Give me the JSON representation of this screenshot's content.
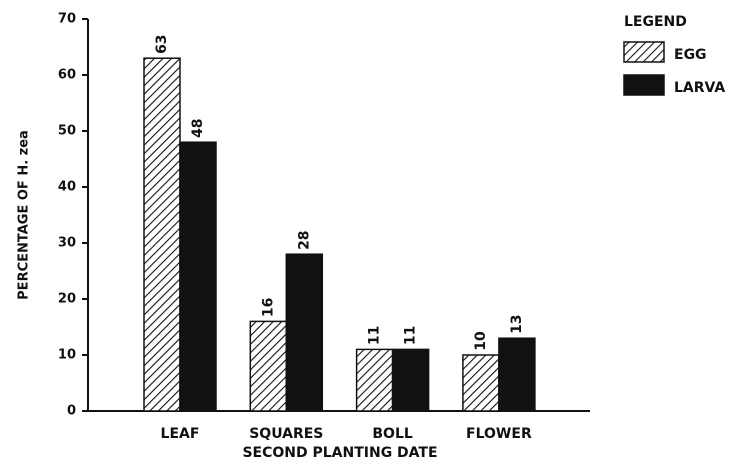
{
  "chart_data": {
    "type": "bar",
    "xlabel": "SECOND PLANTING DATE",
    "ylabel": "PERCENTAGE OF H. zea",
    "categories": [
      "LEAF",
      "SQUARES",
      "BOLL",
      "FLOWER"
    ],
    "series": [
      {
        "name": "EGG",
        "color": "#111111",
        "fill": "hatch",
        "values": [
          63,
          16,
          11,
          10
        ]
      },
      {
        "name": "LARVA",
        "color": "#111111",
        "fill": "solid",
        "values": [
          48,
          28,
          11,
          13
        ]
      }
    ],
    "ylim": [
      0,
      70
    ],
    "yticks": [
      0,
      10,
      20,
      30,
      40,
      50,
      60,
      70
    ],
    "legend": {
      "title": "LEGEND",
      "position": "right"
    }
  }
}
